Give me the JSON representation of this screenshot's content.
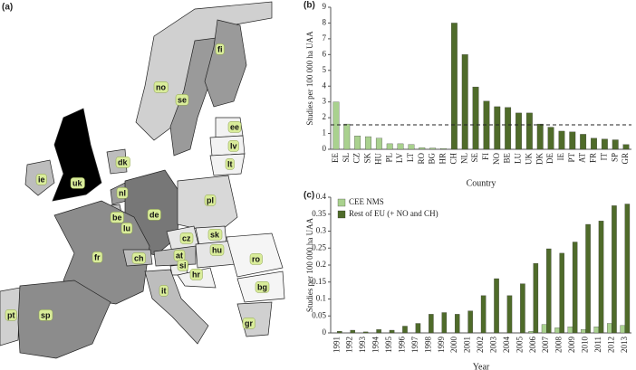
{
  "map": {
    "panel_label": "(a)",
    "countries": [
      {
        "label": "fi",
        "color": "#d0d0d0"
      },
      {
        "label": "no",
        "color": "#9a9a9a"
      },
      {
        "label": "se",
        "color": "#9a9a9a"
      },
      {
        "label": "ee",
        "color": "#f2f2f2"
      },
      {
        "label": "lv",
        "color": "#f2f2f2"
      },
      {
        "label": "lt",
        "color": "#f2f2f2"
      },
      {
        "label": "dk",
        "color": "#bdbdbd"
      },
      {
        "label": "ie",
        "color": "#bdbdbd"
      },
      {
        "label": "uk",
        "color": "#000000"
      },
      {
        "label": "nl",
        "color": "#9a9a9a"
      },
      {
        "label": "be",
        "color": "#bdbdbd"
      },
      {
        "label": "lu",
        "color": "#d0d0d0"
      },
      {
        "label": "de",
        "color": "#777777"
      },
      {
        "label": "pl",
        "color": "#d8d8d8"
      },
      {
        "label": "cz",
        "color": "#e6e6e6"
      },
      {
        "label": "sk",
        "color": "#eeeeee"
      },
      {
        "label": "at",
        "color": "#bdbdbd"
      },
      {
        "label": "hu",
        "color": "#e6e6e6"
      },
      {
        "label": "si",
        "color": "#eeeeee"
      },
      {
        "label": "hr",
        "color": "#f2f2f2"
      },
      {
        "label": "fr",
        "color": "#8c8c8c"
      },
      {
        "label": "ch",
        "color": "#bdbdbd"
      },
      {
        "label": "ro",
        "color": "#f5f5f5"
      },
      {
        "label": "bg",
        "color": "#f5f5f5"
      },
      {
        "label": "it",
        "color": "#bdbdbd"
      },
      {
        "label": "pt",
        "color": "#d0d0d0"
      },
      {
        "label": "sp",
        "color": "#8c8c8c"
      },
      {
        "label": "gr",
        "color": "#d0d0d0"
      }
    ]
  },
  "chart_data": [
    {
      "type": "bar",
      "panel_label": "(b)",
      "x_label": "Country",
      "y_label": "Studies per 100 000 ha UAA",
      "categories": [
        "EE",
        "SL",
        "CZ",
        "SK",
        "HU",
        "PL",
        "LV",
        "LT",
        "RO",
        "BG",
        "HR",
        "CH",
        "NL",
        "SE",
        "FI",
        "NO",
        "BE",
        "LU",
        "UK",
        "DK",
        "DE",
        "IE",
        "PT",
        "AT",
        "FR",
        "IT",
        "SP",
        "GR"
      ],
      "series": [
        {
          "color": "#a9d18e",
          "values": [
            3.0,
            1.6,
            0.85,
            0.8,
            0.7,
            0.35,
            0.35,
            0.3,
            0.1,
            0.08,
            0.05,
            null,
            null,
            null,
            null,
            null,
            null,
            null,
            null,
            null,
            null,
            null,
            null,
            null,
            null,
            null,
            null,
            null
          ]
        },
        {
          "color": "#4f6b2a",
          "values": [
            null,
            null,
            null,
            null,
            null,
            null,
            null,
            null,
            null,
            null,
            null,
            8.0,
            6.0,
            3.95,
            3.05,
            2.7,
            2.65,
            2.3,
            2.3,
            1.6,
            1.4,
            1.15,
            1.1,
            0.95,
            0.7,
            0.65,
            0.6,
            0.3
          ]
        }
      ],
      "grouped": false,
      "reference_line": 1.55,
      "ylim": [
        0,
        9
      ],
      "yticks": [
        0,
        1,
        2,
        3,
        4,
        5,
        6,
        7,
        8,
        9
      ]
    },
    {
      "type": "bar",
      "panel_label": "(c)",
      "x_label": "Year",
      "y_label": "Studies per 100 000 ha UAA",
      "categories": [
        "1991",
        "1992",
        "1993",
        "1994",
        "1995",
        "1996",
        "1997",
        "1998",
        "1999",
        "2000",
        "2001",
        "2002",
        "2003",
        "2004",
        "2005",
        "2006",
        "2007",
        "2008",
        "2009",
        "2010",
        "2011",
        "2012",
        "2013"
      ],
      "series": [
        {
          "name": "CEE NMS",
          "color": "#a9d18e",
          "values": [
            0,
            0,
            0,
            0,
            0,
            0,
            0,
            0,
            0,
            0,
            0,
            0,
            0,
            0,
            0,
            0.005,
            0.025,
            0.015,
            0.018,
            0.01,
            0.018,
            0.028,
            0.022
          ]
        },
        {
          "name": "Rest of EU (+ NO and CH)",
          "color": "#4f6b2a",
          "values": [
            0.005,
            0.008,
            0.003,
            0.01,
            0.008,
            0.02,
            0.028,
            0.055,
            0.06,
            0.055,
            0.065,
            0.11,
            0.16,
            0.11,
            0.145,
            0.205,
            0.248,
            0.235,
            0.268,
            0.32,
            0.33,
            0.375,
            0.38
          ]
        }
      ],
      "grouped": true,
      "legend": "top-left",
      "ylim": [
        0,
        0.4
      ],
      "yticks": [
        0,
        0.05,
        0.1,
        0.15,
        0.2,
        0.25,
        0.3,
        0.35,
        0.4
      ]
    }
  ]
}
